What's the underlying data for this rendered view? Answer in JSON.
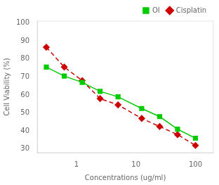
{
  "chart_data": {
    "type": "line",
    "x": [
      0.3125,
      0.625,
      1.25,
      2.5,
      5.0,
      12.5,
      25.0,
      50.0,
      100.0
    ],
    "series": [
      {
        "name": "OI",
        "color": "#00cc00",
        "marker": "square",
        "line_style": "solid",
        "values": [
          75.5,
          70.5,
          67.0,
          62.0,
          59.0,
          52.5,
          48.0,
          41.0,
          36.0
        ]
      },
      {
        "name": "Cisplatin",
        "color": "#cc0000",
        "marker": "diamond",
        "line_style": "dashed",
        "values": [
          86.5,
          75.5,
          68.0,
          58.0,
          54.5,
          47.0,
          42.5,
          38.0,
          32.0
        ]
      }
    ],
    "xlabel": "Concentrations (ug/ml)",
    "ylabel": "Cell Viability (%)",
    "log": "x",
    "xlim": [
      0.22,
      200
    ],
    "xticks": [
      1,
      10,
      100
    ],
    "ylim": [
      28,
      101
    ],
    "yticks": [
      30,
      40,
      50,
      60,
      70,
      80,
      90,
      100
    ],
    "grid": false,
    "legend": "upper right"
  }
}
